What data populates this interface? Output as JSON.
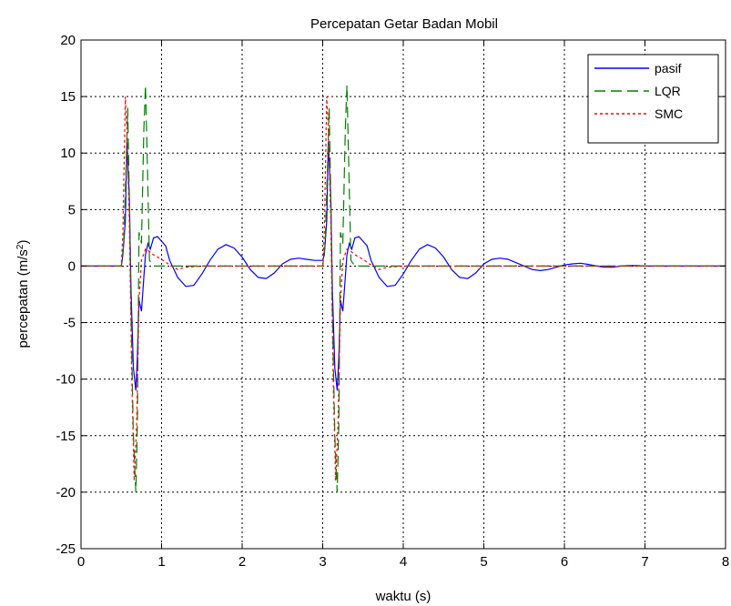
{
  "chart_data": {
    "type": "line",
    "title": "Percepatan Getar Badan Mobil",
    "xlabel": "waktu (s)",
    "ylabel": "percepatan (m/s",
    "ylabel_sup": "2",
    "ylabel_end": ")",
    "xlim": [
      0,
      8
    ],
    "ylim": [
      -25,
      20
    ],
    "xticks": [
      0,
      1,
      2,
      3,
      4,
      5,
      6,
      7,
      8
    ],
    "yticks": [
      -25,
      -20,
      -15,
      -10,
      -5,
      0,
      5,
      10,
      15,
      20
    ],
    "xtick_labels": [
      "0",
      "1",
      "2",
      "3",
      "4",
      "5",
      "6",
      "7",
      "8"
    ],
    "ytick_labels": [
      "-25",
      "-20",
      "-15",
      "-10",
      "-5",
      "0",
      "5",
      "10",
      "15",
      "20"
    ],
    "grid": true,
    "legend_position": "top-right",
    "series": [
      {
        "name": "pasif",
        "color": "#0000ff",
        "dash": "solid",
        "x": [
          0,
          0.5,
          0.52,
          0.55,
          0.57,
          0.6,
          0.62,
          0.65,
          0.68,
          0.7,
          0.72,
          0.75,
          0.78,
          0.8,
          0.83,
          0.86,
          0.9,
          0.95,
          1.0,
          1.05,
          1.1,
          1.2,
          1.3,
          1.4,
          1.5,
          1.6,
          1.7,
          1.8,
          1.9,
          2.0,
          2.1,
          2.2,
          2.3,
          2.4,
          2.5,
          2.6,
          2.7,
          2.8,
          2.9,
          3.0,
          3.02,
          3.05,
          3.07,
          3.1,
          3.12,
          3.15,
          3.18,
          3.2,
          3.22,
          3.25,
          3.28,
          3.3,
          3.33,
          3.36,
          3.4,
          3.45,
          3.5,
          3.55,
          3.6,
          3.7,
          3.8,
          3.9,
          4.0,
          4.1,
          4.2,
          4.3,
          4.4,
          4.5,
          4.6,
          4.7,
          4.8,
          4.9,
          5.0,
          5.1,
          5.2,
          5.3,
          5.4,
          5.5,
          5.6,
          5.7,
          5.8,
          5.9,
          6.0,
          6.1,
          6.2,
          6.3,
          6.4,
          6.5,
          6.6,
          6.7,
          6.8,
          6.9,
          7.0,
          7.2,
          7.4,
          7.6,
          7.8,
          8.0
        ],
        "y": [
          0,
          0,
          1,
          4,
          11,
          6,
          -2,
          -9,
          -11,
          -8,
          -3,
          -4,
          -1,
          1,
          2,
          1.5,
          2.5,
          2.6,
          2.2,
          1.8,
          0.5,
          -1.0,
          -1.8,
          -1.7,
          -0.7,
          0.5,
          1.5,
          1.9,
          1.6,
          0.8,
          -0.3,
          -1.0,
          -1.1,
          -0.6,
          0.2,
          0.6,
          0.7,
          0.6,
          0.5,
          0.5,
          1,
          4,
          11,
          6,
          -2,
          -9,
          -11,
          -8,
          -3,
          -4,
          -1,
          1,
          2,
          1.5,
          2.5,
          2.6,
          2.2,
          1.8,
          0.5,
          -1.0,
          -1.8,
          -1.7,
          -0.7,
          0.5,
          1.5,
          1.9,
          1.6,
          0.8,
          -0.3,
          -1.0,
          -1.1,
          -0.6,
          0.2,
          0.6,
          0.7,
          0.6,
          0.3,
          0.0,
          -0.3,
          -0.4,
          -0.3,
          -0.1,
          0.1,
          0.2,
          0.25,
          0.15,
          0.0,
          -0.1,
          -0.1,
          0.0,
          0.05,
          0.05,
          0.0,
          0.0,
          0.0,
          0.0,
          0.0,
          0.0
        ]
      },
      {
        "name": "LQR",
        "color": "#008000",
        "dash": "long-dash",
        "x": [
          0,
          0.5,
          0.53,
          0.56,
          0.58,
          0.6,
          0.62,
          0.65,
          0.68,
          0.7,
          0.72,
          0.75,
          0.78,
          0.8,
          0.82,
          0.85,
          0.9,
          1.0,
          1.2,
          1.5,
          2.0,
          2.5,
          3.0,
          3.03,
          3.06,
          3.08,
          3.1,
          3.12,
          3.15,
          3.18,
          3.2,
          3.22,
          3.25,
          3.28,
          3.3,
          3.32,
          3.35,
          3.4,
          3.5,
          3.7,
          4.0,
          5.0,
          6.0,
          7.0,
          8.0
        ],
        "y": [
          0,
          0,
          2,
          9,
          14,
          6,
          -4,
          -15,
          -20,
          -14,
          3,
          2,
          12,
          16,
          10,
          0.5,
          0,
          0,
          0,
          0,
          0,
          0,
          0,
          2,
          9,
          14,
          6,
          -4,
          -15,
          -20,
          -14,
          3,
          2,
          12,
          16,
          10,
          0.5,
          0,
          0,
          0,
          0,
          0,
          0,
          0,
          0
        ]
      },
      {
        "name": "SMC",
        "color": "#ff0000",
        "dash": "dotted",
        "x": [
          0,
          0.5,
          0.52,
          0.55,
          0.57,
          0.6,
          0.63,
          0.66,
          0.69,
          0.72,
          0.75,
          0.8,
          0.85,
          0.9,
          1.0,
          1.1,
          1.2,
          1.3,
          1.5,
          2.0,
          3.0,
          3.02,
          3.05,
          3.07,
          3.1,
          3.13,
          3.16,
          3.19,
          3.22,
          3.25,
          3.3,
          3.35,
          3.4,
          3.5,
          3.6,
          3.7,
          3.8,
          4.0,
          5.0,
          6.0,
          7.0,
          8.0
        ],
        "y": [
          0,
          0,
          3,
          15,
          12,
          4,
          -10,
          -19,
          -14,
          -3,
          0.5,
          1.5,
          1.3,
          1.0,
          0.6,
          0.1,
          -0.3,
          -0.1,
          0,
          0,
          0,
          3,
          15,
          12,
          4,
          -10,
          -19,
          -14,
          -3,
          0.5,
          1.5,
          1.3,
          1.0,
          0.6,
          0.1,
          -0.3,
          -0.1,
          0,
          0,
          0,
          0,
          0
        ]
      }
    ]
  }
}
